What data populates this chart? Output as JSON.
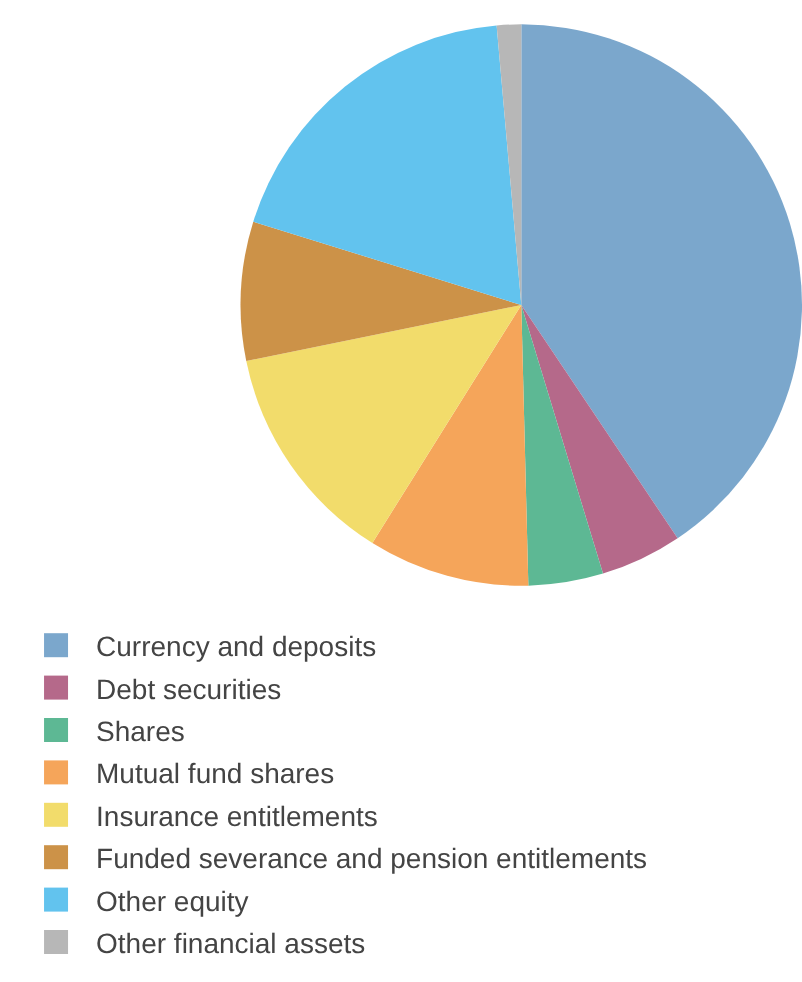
{
  "chart_data": {
    "type": "pie",
    "categories": [
      "Currency and deposits",
      "Debt securities",
      "Shares",
      "Mutual fund shares",
      "Insurance entitlements",
      "Funded severance and pension entitlements",
      "Other equity",
      "Other financial assets"
    ],
    "values": [
      40.6,
      4.7,
      4.3,
      9.3,
      12.9,
      8.0,
      18.8,
      1.4
    ],
    "colors": [
      "#7ba7cc",
      "#b5698a",
      "#5db894",
      "#f5a55a",
      "#f2dc6b",
      "#cc9248",
      "#62c3ee",
      "#b7b7b7"
    ],
    "legend": "bottom"
  }
}
